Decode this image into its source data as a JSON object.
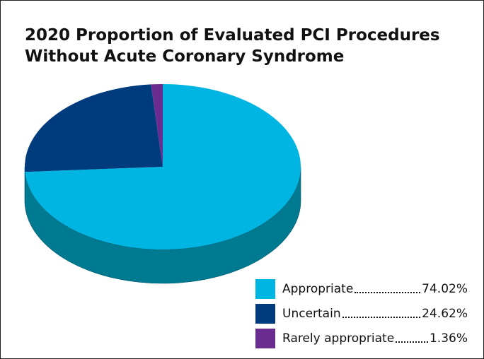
{
  "chart_data": {
    "type": "pie3d",
    "title": [
      "2020 Proportion of Evaluated PCI Procedures",
      "Without Acute Coronary Syndrome"
    ],
    "categories": [
      "Appropriate",
      "Uncertain",
      "Rarely appropriate"
    ],
    "values": [
      74.02,
      24.62,
      1.36
    ],
    "value_labels": [
      "74.02%",
      "24.62%",
      "1.36%"
    ],
    "colors": [
      "#00b5e2",
      "#003b7e",
      "#6b2c91"
    ],
    "side_colors": [
      "#007a91",
      "#002a5c",
      "#4a1f66"
    ]
  }
}
